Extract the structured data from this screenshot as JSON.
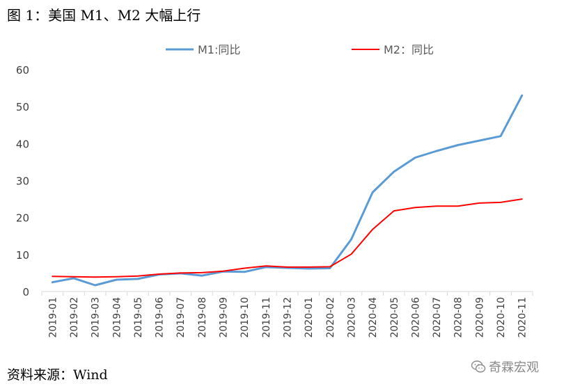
{
  "title": "图 1：美国 M1、M2 大幅上行",
  "source": "资料来源：Wind",
  "watermark": {
    "text": "奇霖宏观",
    "icon": "wechat-icon"
  },
  "chart_data": {
    "type": "line",
    "title": "",
    "xlabel": "",
    "ylabel": "",
    "ylim": [
      0,
      60
    ],
    "yticks": [
      0,
      10,
      20,
      30,
      40,
      50,
      60
    ],
    "grid": false,
    "legend_position": "top",
    "categories": [
      "2019-01",
      "2019-02",
      "2019-03",
      "2019-04",
      "2019-05",
      "2019-06",
      "2019-07",
      "2019-08",
      "2019-09",
      "2019-10",
      "2019-11",
      "2019-12",
      "2020-01",
      "2020-02",
      "2020-03",
      "2020-04",
      "2020-05",
      "2020-06",
      "2020-07",
      "2020-08",
      "2020-09",
      "2020-10",
      "2020-11"
    ],
    "series": [
      {
        "name": "M1:同比",
        "color": "#5b9bd5",
        "values": [
          2.5,
          3.6,
          1.7,
          3.2,
          3.4,
          4.6,
          4.9,
          4.3,
          5.4,
          5.3,
          6.6,
          6.4,
          6.2,
          6.3,
          14.1,
          26.8,
          32.4,
          36.2,
          38.0,
          39.6,
          40.8,
          42.0,
          53.0
        ]
      },
      {
        "name": "M2：同比",
        "color": "#ff0000",
        "values": [
          4.1,
          4.0,
          3.9,
          4.0,
          4.2,
          4.7,
          5.0,
          5.1,
          5.5,
          6.3,
          6.9,
          6.6,
          6.6,
          6.7,
          10.1,
          16.8,
          21.8,
          22.7,
          23.1,
          23.1,
          23.9,
          24.1,
          25.0
        ]
      }
    ]
  }
}
